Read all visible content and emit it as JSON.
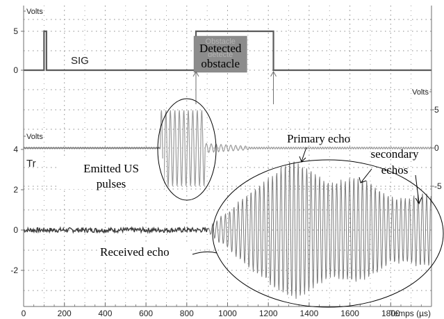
{
  "chart_data": {
    "type": "line",
    "x_axis": {
      "label": "Temps (µs)",
      "range": [
        0,
        2000
      ],
      "ticks": [
        0,
        200,
        400,
        600,
        800,
        1000,
        1200,
        1400,
        1600,
        1800
      ]
    },
    "panels": [
      {
        "id": "sig",
        "unit_label": "Volts",
        "axis_side": "left",
        "ticks": [
          5,
          0
        ],
        "trace_label": "SIG",
        "trace_kind": "digital",
        "low": 0,
        "high": 5,
        "pulses": [
          {
            "start": 100,
            "end": 112
          },
          {
            "start": 845,
            "end": 1225
          }
        ],
        "box_text": [
          "Obstacle",
          "détecté"
        ]
      },
      {
        "id": "emitter",
        "unit_label": "Volts",
        "axis_side": "right",
        "ticks": [
          5,
          0,
          -5
        ],
        "trace_kind": "burst",
        "baseline": 0,
        "burst": {
          "start": 670,
          "end": 890,
          "amplitude": 5
        },
        "ringdown": {
          "start": 890,
          "end": 1100,
          "amplitude": 0.6
        }
      },
      {
        "id": "receiver",
        "unit_label": "Volts",
        "axis_side": "left",
        "ticks": [
          4,
          2,
          0,
          -2
        ],
        "trace_label": "Tr",
        "trace_kind": "echo",
        "baseline": 0,
        "noise_amplitude": 0.12,
        "echo_start": 900,
        "envelope": [
          {
            "x": 900,
            "y": 0.1
          },
          {
            "x": 1000,
            "y": 0.9
          },
          {
            "x": 1100,
            "y": 1.8
          },
          {
            "x": 1250,
            "y": 3.0
          },
          {
            "x": 1330,
            "y": 3.5
          },
          {
            "x": 1420,
            "y": 2.9
          },
          {
            "x": 1500,
            "y": 2.3
          },
          {
            "x": 1580,
            "y": 2.5
          },
          {
            "x": 1640,
            "y": 2.6
          },
          {
            "x": 1720,
            "y": 2.2
          },
          {
            "x": 1800,
            "y": 1.6
          },
          {
            "x": 1880,
            "y": 1.6
          },
          {
            "x": 1950,
            "y": 1.8
          },
          {
            "x": 2000,
            "y": 1.7
          }
        ]
      }
    ],
    "annotations": {
      "detected_obstacle": "Detected obstacle",
      "emitted_us_pulses": "Emitted US pulses",
      "primary_echo": "Primary echo",
      "secondary_echos": "secondary echos",
      "received_echo": "Received echo"
    },
    "grid": true,
    "colors": {
      "background": "#ffffff",
      "grid": "#8a8a8a",
      "axis_line": "#6e6e6e",
      "trace_sig": "#5a5a5a",
      "trace_emitter": "#9a9a9a",
      "trace_echo": "#7a7a7a",
      "obstacle_box": "#8c8c8c",
      "text": "#222222",
      "annotation_text": "#000000"
    }
  }
}
